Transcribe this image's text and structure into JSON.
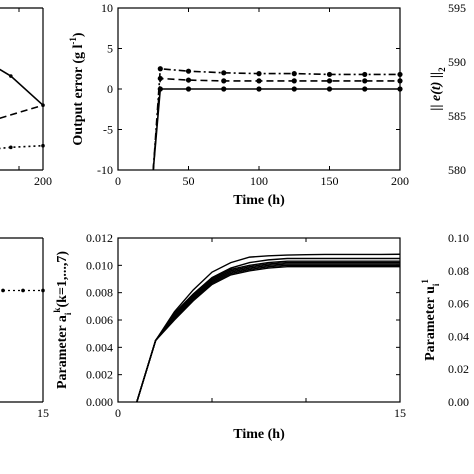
{
  "chart_data": [
    {
      "panel": "top-left (cropped)",
      "type": "line",
      "x_ticks": [
        "200"
      ],
      "series": [
        {
          "style": "solid",
          "x": [
            150,
            175,
            200
          ],
          "y": [
            0.3,
            0.42,
            0.6
          ]
        },
        {
          "style": "dashed",
          "x": [
            150,
            175,
            200
          ],
          "y": [
            0.72,
            0.66,
            0.6
          ]
        },
        {
          "style": "dotted-markers",
          "x": [
            150,
            175,
            200
          ],
          "y": [
            0.88,
            0.86,
            0.85
          ]
        }
      ]
    },
    {
      "panel": "top-middle",
      "type": "line",
      "xlabel": "Time (h)",
      "ylabel_main": "Output error (g l",
      "ylabel_sup": "-1",
      "ylabel_end": ")",
      "xlim": [
        0,
        200
      ],
      "ylim": [
        -10,
        10
      ],
      "x_ticks": [
        "0",
        "50",
        "100",
        "150",
        "200"
      ],
      "y_ticks": [
        "-10",
        "-5",
        "0",
        "5",
        "10"
      ],
      "series": [
        {
          "style": "solid",
          "marker": "circle",
          "x": [
            25,
            30,
            50,
            75,
            100,
            125,
            150,
            175,
            200
          ],
          "y": [
            -10,
            0.0,
            0.0,
            0.0,
            0.0,
            0.0,
            0.0,
            0.0,
            0.0
          ]
        },
        {
          "style": "dashed",
          "marker": "circle",
          "x": [
            25,
            30,
            50,
            75,
            100,
            125,
            150,
            175,
            200
          ],
          "y": [
            -10,
            1.3,
            1.1,
            1.0,
            1.0,
            1.0,
            1.0,
            1.0,
            1.0
          ]
        },
        {
          "style": "dash-dot",
          "marker": "circle",
          "x": [
            25,
            30,
            50,
            75,
            100,
            125,
            150,
            175,
            200
          ],
          "y": [
            -10,
            2.5,
            2.2,
            2.0,
            1.9,
            1.9,
            1.8,
            1.8,
            1.8
          ]
        }
      ]
    },
    {
      "panel": "top-right (cropped)",
      "type": "line",
      "ylabel": "|| e(t) ||",
      "ylabel_sub": "2",
      "y_ticks": [
        "595",
        "590",
        "585",
        "580"
      ]
    },
    {
      "panel": "bottom-left (cropped)",
      "type": "line",
      "x_ticks": [
        "15"
      ],
      "series": [
        {
          "style": "dotted-markers",
          "x": [
            10,
            12.5,
            15
          ],
          "y": [
            0.5,
            0.5,
            0.5
          ]
        }
      ]
    },
    {
      "panel": "bottom-middle",
      "type": "line",
      "xlabel": "Time (h)",
      "ylabel_main": "Parameter a",
      "ylabel_sub": "i",
      "ylabel_sup": "k",
      "ylabel_end": "(k=1,...,7)",
      "xlim": [
        0,
        15
      ],
      "ylim": [
        0,
        0.012
      ],
      "x_ticks": [
        "0",
        "15"
      ],
      "y_ticks": [
        "0.000",
        "0.002",
        "0.004",
        "0.006",
        "0.008",
        "0.010",
        "0.012"
      ],
      "series": [
        {
          "x": [
            1,
            2,
            3,
            4,
            5,
            6,
            7,
            8,
            9,
            10,
            11,
            12,
            13,
            14,
            15
          ],
          "y": [
            0.0,
            0.0045,
            0.0066,
            0.0082,
            0.0095,
            0.0102,
            0.0106,
            0.0107,
            0.01075,
            0.01078,
            0.0108,
            0.0108,
            0.0108,
            0.0108,
            0.01081
          ]
        },
        {
          "x": [
            1,
            2,
            3,
            4,
            5,
            6,
            7,
            8,
            9,
            10,
            11,
            12,
            13,
            14,
            15
          ],
          "y": [
            0.0,
            0.0045,
            0.0065,
            0.0079,
            0.0091,
            0.0098,
            0.0102,
            0.0104,
            0.0105,
            0.0105,
            0.0105,
            0.0105,
            0.0105,
            0.0105,
            0.0105
          ]
        },
        {
          "x": [
            1,
            2,
            3,
            4,
            5,
            6,
            7,
            8,
            9,
            10,
            11,
            12,
            13,
            14,
            15
          ],
          "y": [
            0.0,
            0.0045,
            0.0064,
            0.0078,
            0.009,
            0.0097,
            0.01,
            0.0102,
            0.0103,
            0.0103,
            0.0103,
            0.0103,
            0.0103,
            0.0103,
            0.0103
          ]
        },
        {
          "x": [
            1,
            2,
            3,
            4,
            5,
            6,
            7,
            8,
            9,
            10,
            11,
            12,
            13,
            14,
            15
          ],
          "y": [
            0.0,
            0.0045,
            0.0063,
            0.0077,
            0.0089,
            0.0096,
            0.0099,
            0.0101,
            0.0102,
            0.0102,
            0.0102,
            0.0102,
            0.0102,
            0.0102,
            0.0102
          ]
        },
        {
          "x": [
            1,
            2,
            3,
            4,
            5,
            6,
            7,
            8,
            9,
            10,
            11,
            12,
            13,
            14,
            15
          ],
          "y": [
            0.0,
            0.0045,
            0.0062,
            0.0076,
            0.0088,
            0.0095,
            0.0098,
            0.01,
            0.0101,
            0.0101,
            0.0101,
            0.0101,
            0.0101,
            0.0101,
            0.0101
          ]
        },
        {
          "x": [
            1,
            2,
            3,
            4,
            5,
            6,
            7,
            8,
            9,
            10,
            11,
            12,
            13,
            14,
            15
          ],
          "y": [
            0.0,
            0.0045,
            0.0061,
            0.0075,
            0.0087,
            0.0094,
            0.0097,
            0.0099,
            0.01,
            0.01,
            0.01,
            0.01,
            0.01,
            0.01,
            0.01
          ]
        },
        {
          "x": [
            1,
            2,
            3,
            4,
            5,
            6,
            7,
            8,
            9,
            10,
            11,
            12,
            13,
            14,
            15
          ],
          "y": [
            0.0,
            0.0045,
            0.006,
            0.0074,
            0.0086,
            0.0093,
            0.0096,
            0.0098,
            0.0099,
            0.0099,
            0.0099,
            0.0099,
            0.0099,
            0.0099,
            0.0099
          ]
        }
      ]
    },
    {
      "panel": "bottom-right (cropped)",
      "type": "line",
      "ylabel_main": "Parameter u",
      "ylabel_sub": "i",
      "ylabel_sup": "1",
      "y_ticks": [
        "0.10",
        "0.08",
        "0.06",
        "0.04",
        "0.02",
        "0.00"
      ]
    }
  ]
}
